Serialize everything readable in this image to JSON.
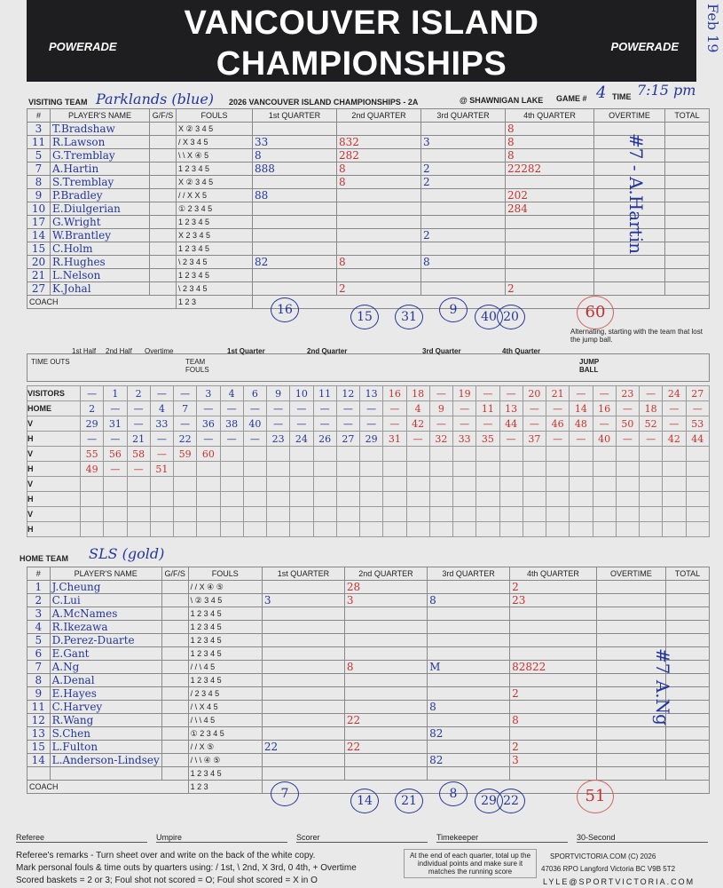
{
  "header": {
    "title_line1": "VANCOUVER ISLAND",
    "title_line2": "CHAMPIONSHIPS",
    "logo": "POWERADE",
    "side_note": "Feb 19"
  },
  "info": {
    "visiting_label": "VISITING TEAM",
    "visiting_team": "Parklands (blue)",
    "event": "2026 VANCOUVER ISLAND CHAMPIONSHIPS - 2A",
    "venue": "@ SHAWNIGAN LAKE",
    "game_label": "GAME #",
    "game": "4",
    "time_label": "TIME",
    "time": "7:15 pm"
  },
  "columns": [
    "#",
    "PLAYER'S NAME",
    "G/F/S",
    "FOULS",
    "1st QUARTER",
    "2nd QUARTER",
    "3rd QUARTER",
    "4th QUARTER",
    "OVERTIME",
    "TOTAL"
  ],
  "visitors": {
    "players": [
      {
        "num": "3",
        "name": "T.Bradshaw",
        "fouls": "X ② 3 4 5",
        "q1": "",
        "q2": "",
        "q3": "",
        "q4": "8"
      },
      {
        "num": "11",
        "name": "R.Lawson",
        "fouls": "/ X 3 4 5",
        "q1": "33",
        "q2": "832",
        "q3": "3",
        "q4": "8"
      },
      {
        "num": "5",
        "name": "G.Tremblay",
        "fouls": "\\ \\ X ④ 5",
        "q1": "8",
        "q2": "282",
        "q3": "",
        "q4": "8"
      },
      {
        "num": "7",
        "name": "A.Hartin",
        "fouls": "1 2 3 4 5",
        "q1": "888",
        "q2": "8",
        "q3": "2",
        "q4": "22282"
      },
      {
        "num": "8",
        "name": "S.Tremblay",
        "fouls": "X ② 3 4 5",
        "q1": "",
        "q2": "8",
        "q3": "2",
        "q4": ""
      },
      {
        "num": "9",
        "name": "P.Bradley",
        "fouls": "/ / X X 5",
        "q1": "88",
        "q2": "",
        "q3": "",
        "q4": "202"
      },
      {
        "num": "10",
        "name": "E.Diulgerian",
        "fouls": "① 2 3 4 5",
        "q1": "",
        "q2": "",
        "q3": "",
        "q4": "284"
      },
      {
        "num": "17",
        "name": "G.Wright",
        "fouls": "1 2 3 4 5",
        "q1": "",
        "q2": "",
        "q3": "",
        "q4": ""
      },
      {
        "num": "14",
        "name": "W.Brantley",
        "fouls": "X 2 3 4 5",
        "q1": "",
        "q2": "",
        "q3": "2",
        "q4": ""
      },
      {
        "num": "15",
        "name": "C.Holm",
        "fouls": "1 2 3 4 5",
        "q1": "",
        "q2": "",
        "q3": "",
        "q4": ""
      },
      {
        "num": "20",
        "name": "R.Hughes",
        "fouls": "\\ 2 3 4 5",
        "q1": "82",
        "q2": "8",
        "q3": "8",
        "q4": ""
      },
      {
        "num": "21",
        "name": "L.Nelson",
        "fouls": "1 2 3 4 5",
        "q1": "",
        "q2": "",
        "q3": "",
        "q4": ""
      },
      {
        "num": "27",
        "name": "K.Johal",
        "fouls": "\\ 2 3 4 5",
        "q1": "",
        "q2": "2",
        "q3": "",
        "q4": "2"
      }
    ],
    "quarter_totals": [
      "16",
      "15",
      "9",
      "20"
    ],
    "running_totals": [
      "31",
      "40",
      "60"
    ],
    "overtime_note": "#7 - A.Hartin"
  },
  "coach_label": "COACH",
  "fouls_section": {
    "first_half": "1st Half",
    "second_half": "2nd Half",
    "overtime": "Overtime",
    "time_outs": "TIME OUTS",
    "team_fouls": "TEAM FOULS",
    "quarters": [
      "1st Quarter",
      "2nd Quarter",
      "3rd Quarter",
      "4th Quarter"
    ],
    "jump_note": "Alternating, starting with the team that lost the jump ball.",
    "jump_ball": "JUMP BALL"
  },
  "running_score": {
    "rows": [
      {
        "label": "VISITORS",
        "cells": [
          "—",
          "1",
          "2",
          "—",
          "—",
          "3",
          "4",
          "6",
          "9",
          "10",
          "11",
          "12",
          "13",
          "16",
          "18",
          "—",
          "19",
          "—",
          "—",
          "20",
          "21",
          "—",
          "—",
          "23",
          "—",
          "24",
          "27"
        ]
      },
      {
        "label": "HOME",
        "cells": [
          "2",
          "—",
          "—",
          "4",
          "7",
          "—",
          "—",
          "—",
          "—",
          "—",
          "—",
          "—",
          "—",
          "—",
          "4",
          "9",
          "—",
          "11",
          "13",
          "—",
          "—",
          "14",
          "16",
          "—",
          "18",
          "—",
          "—"
        ]
      },
      {
        "label": "V",
        "cells": [
          "29",
          "31",
          "—",
          "33",
          "—",
          "36",
          "38",
          "40",
          "—",
          "—",
          "—",
          "—",
          "—",
          "—",
          "42",
          "—",
          "—",
          "—",
          "44",
          "—",
          "46",
          "48",
          "—",
          "50",
          "52",
          "—",
          "53"
        ]
      },
      {
        "label": "H",
        "cells": [
          "—",
          "—",
          "21",
          "—",
          "22",
          "—",
          "—",
          "—",
          "23",
          "24",
          "26",
          "27",
          "29",
          "31",
          "—",
          "32",
          "33",
          "35",
          "—",
          "37",
          "—",
          "—",
          "40",
          "—",
          "—",
          "42",
          "44"
        ]
      },
      {
        "label": "V",
        "cells": [
          "55",
          "56",
          "58",
          "—",
          "59",
          "60",
          "",
          "",
          "",
          "",
          "",
          "",
          "",
          "",
          "",
          "",
          "",
          "",
          "",
          "",
          "",
          "",
          "",
          "",
          "",
          "",
          ""
        ]
      },
      {
        "label": "H",
        "cells": [
          "49",
          "—",
          "—",
          "51",
          "",
          "",
          "",
          "",
          "",
          "",
          "",
          "",
          "",
          "",
          "",
          "",
          "",
          "",
          "",
          "",
          "",
          "",
          "",
          "",
          "",
          "",
          ""
        ]
      },
      {
        "label": "V",
        "cells": []
      },
      {
        "label": "H",
        "cells": []
      },
      {
        "label": "V",
        "cells": []
      },
      {
        "label": "H",
        "cells": []
      }
    ]
  },
  "home": {
    "label": "HOME TEAM",
    "team": "SLS (gold)",
    "players": [
      {
        "num": "1",
        "name": "J.Cheung",
        "fouls": "/ / X ④ ⑤",
        "q1": "",
        "q2": "28",
        "q3": "",
        "q4": "2"
      },
      {
        "num": "2",
        "name": "C.Lui",
        "fouls": "\\ ② 3 4 5",
        "q1": "3",
        "q2": "3",
        "q3": "8",
        "q4": "23"
      },
      {
        "num": "3",
        "name": "A.McNames",
        "fouls": "1 2 3 4 5",
        "q1": "",
        "q2": "",
        "q3": "",
        "q4": ""
      },
      {
        "num": "4",
        "name": "R.Ikezawa",
        "fouls": "1 2 3 4 5",
        "q1": "",
        "q2": "",
        "q3": "",
        "q4": ""
      },
      {
        "num": "5",
        "name": "D.Perez-Duarte",
        "fouls": "1 2 3 4 5",
        "q1": "",
        "q2": "",
        "q3": "",
        "q4": ""
      },
      {
        "num": "6",
        "name": "E.Gant",
        "fouls": "1 2 3 4 5",
        "q1": "",
        "q2": "",
        "q3": "",
        "q4": ""
      },
      {
        "num": "7",
        "name": "A.Ng",
        "fouls": "/ / \\ 4 5",
        "q1": "",
        "q2": "8",
        "q3": "M",
        "q4": "82822"
      },
      {
        "num": "8",
        "name": "A.Denal",
        "fouls": "1 2 3 4 5",
        "q1": "",
        "q2": "",
        "q3": "",
        "q4": ""
      },
      {
        "num": "9",
        "name": "E.Hayes",
        "fouls": "/ 2 3 4 5",
        "q1": "",
        "q2": "",
        "q3": "",
        "q4": "2"
      },
      {
        "num": "11",
        "name": "C.Harvey",
        "fouls": "/ \\ X 4 5",
        "q1": "",
        "q2": "",
        "q3": "8",
        "q4": ""
      },
      {
        "num": "12",
        "name": "R.Wang",
        "fouls": "/ \\ \\ 4 5",
        "q1": "",
        "q2": "22",
        "q3": "",
        "q4": "8"
      },
      {
        "num": "13",
        "name": "S.Chen",
        "fouls": "① 2 3 4 5",
        "q1": "",
        "q2": "",
        "q3": "82",
        "q4": ""
      },
      {
        "num": "15",
        "name": "L.Fulton",
        "fouls": "/ / X ⑤",
        "q1": "22",
        "q2": "22",
        "q3": "",
        "q4": "2"
      },
      {
        "num": "14",
        "name": "L.Anderson-Lindsey",
        "fouls": "/ \\ \\ ④ ⑤",
        "q1": "",
        "q2": "",
        "q3": "82",
        "q4": "3"
      },
      {
        "num": "",
        "name": "",
        "fouls": "1 2 3 4 5",
        "q1": "",
        "q2": "",
        "q3": "",
        "q4": ""
      }
    ],
    "quarter_totals": [
      "7",
      "14",
      "8",
      "22"
    ],
    "running_totals": [
      "21",
      "29",
      "51"
    ],
    "overtime_note": "#7 A.Ng"
  },
  "officials": [
    "Referee",
    "Umpire",
    "Scorer",
    "Timekeeper",
    "30-Second"
  ],
  "footer": {
    "remarks": "Referee's remarks - Turn sheet over and write on the back of the white copy.",
    "mark": "Mark personal fouls & time outs by quarters using: / 1st, \\ 2nd, X 3rd, 0 4th, + Overtime",
    "scored": "Scored baskets = 2 or 3; Foul shot not scored = O; Foul shot scored = X in O",
    "box": "At the end of each quarter, total up the individual points and make sure it matches the running score",
    "company": "SPORTVICTORIA.COM (C) 2026",
    "address": "47036 RPO Langford  Victoria BC  V9B 5T2",
    "email": "LYLE@SPORTVICTORIA.COM"
  },
  "colors": {
    "pen_blue": "#23369a",
    "pen_red": "#c8322c",
    "banner": "#1e1e20",
    "paper": "#e9e9ea"
  }
}
